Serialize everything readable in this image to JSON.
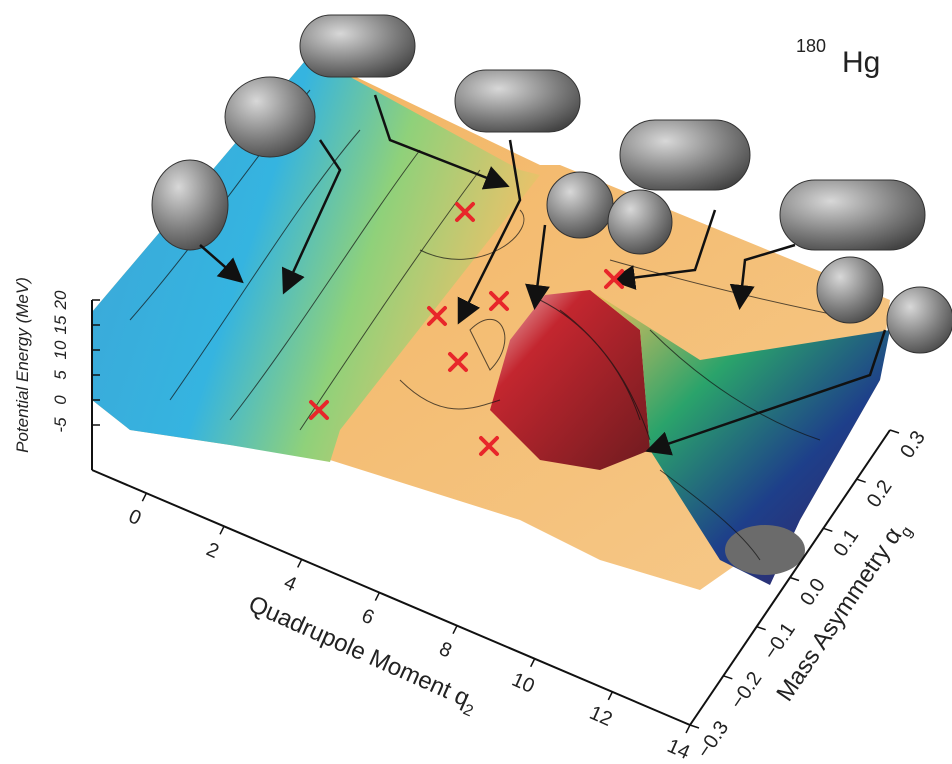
{
  "chart_data": {
    "type": "surface",
    "title": {
      "mass": "180",
      "symbol": "Hg"
    },
    "x_label": {
      "text": "Quadrupole Moment q",
      "subscript": "2"
    },
    "y_label": {
      "text": "Mass Asymmetry α",
      "subscript": "g"
    },
    "z_label": "Potential Energy (MeV)",
    "xlim": [
      -1.4,
      14
    ],
    "xticks": [
      0,
      2,
      4,
      6,
      8,
      10,
      12,
      14
    ],
    "ylim": [
      -0.3,
      0.3
    ],
    "yticks": [
      {
        "value": -0.3,
        "label": "−0.3"
      },
      {
        "value": -0.2,
        "label": "−0.2"
      },
      {
        "value": -0.1,
        "label": "−0.1"
      },
      {
        "value": 0,
        "label": "0.0"
      },
      0.1,
      0.2,
      0.3
    ],
    "zlim": [
      -14,
      20
    ],
    "zticks": [
      -5,
      0,
      5,
      10,
      15,
      20
    ]
  }
}
